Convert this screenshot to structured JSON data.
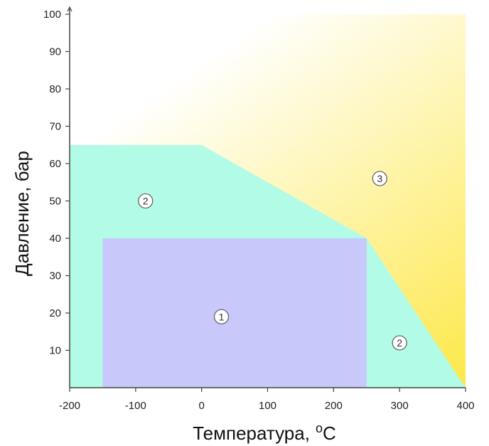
{
  "chart_data": {
    "type": "area",
    "xlabel": "Температура,",
    "xlabel_unit_sup": "o",
    "xlabel_unit": "C",
    "ylabel": "Давление, бар",
    "xlim": [
      -200,
      400
    ],
    "ylim": [
      0,
      100
    ],
    "x_ticks": [
      -200,
      -100,
      0,
      100,
      200,
      300,
      400
    ],
    "y_ticks": [
      10,
      20,
      30,
      40,
      50,
      60,
      70,
      80,
      90,
      100
    ],
    "grid": false,
    "background_gradient": {
      "from": "#fde84a",
      "to": "#ffffff"
    },
    "regions": [
      {
        "id": "3",
        "color": "#fff4a8",
        "polygon": [
          [
            -200,
            100
          ],
          [
            400,
            100
          ],
          [
            400,
            0
          ],
          [
            250,
            40
          ],
          [
            0,
            65
          ],
          [
            -200,
            65
          ]
        ]
      },
      {
        "id": "2",
        "color": "#b2fbe7",
        "polygon": [
          [
            -200,
            0
          ],
          [
            -200,
            65
          ],
          [
            0,
            65
          ],
          [
            250,
            40
          ],
          [
            400,
            0
          ]
        ]
      },
      {
        "id": "1",
        "color": "#c8c8fa",
        "polygon": [
          [
            -150,
            0
          ],
          [
            -150,
            40
          ],
          [
            250,
            40
          ],
          [
            250,
            0
          ]
        ]
      }
    ],
    "markers": [
      {
        "label": "1",
        "x": 30,
        "y": 19
      },
      {
        "label": "2",
        "x": -85,
        "y": 50
      },
      {
        "label": "2",
        "x": 300,
        "y": 12
      },
      {
        "label": "3",
        "x": 270,
        "y": 56
      }
    ]
  }
}
